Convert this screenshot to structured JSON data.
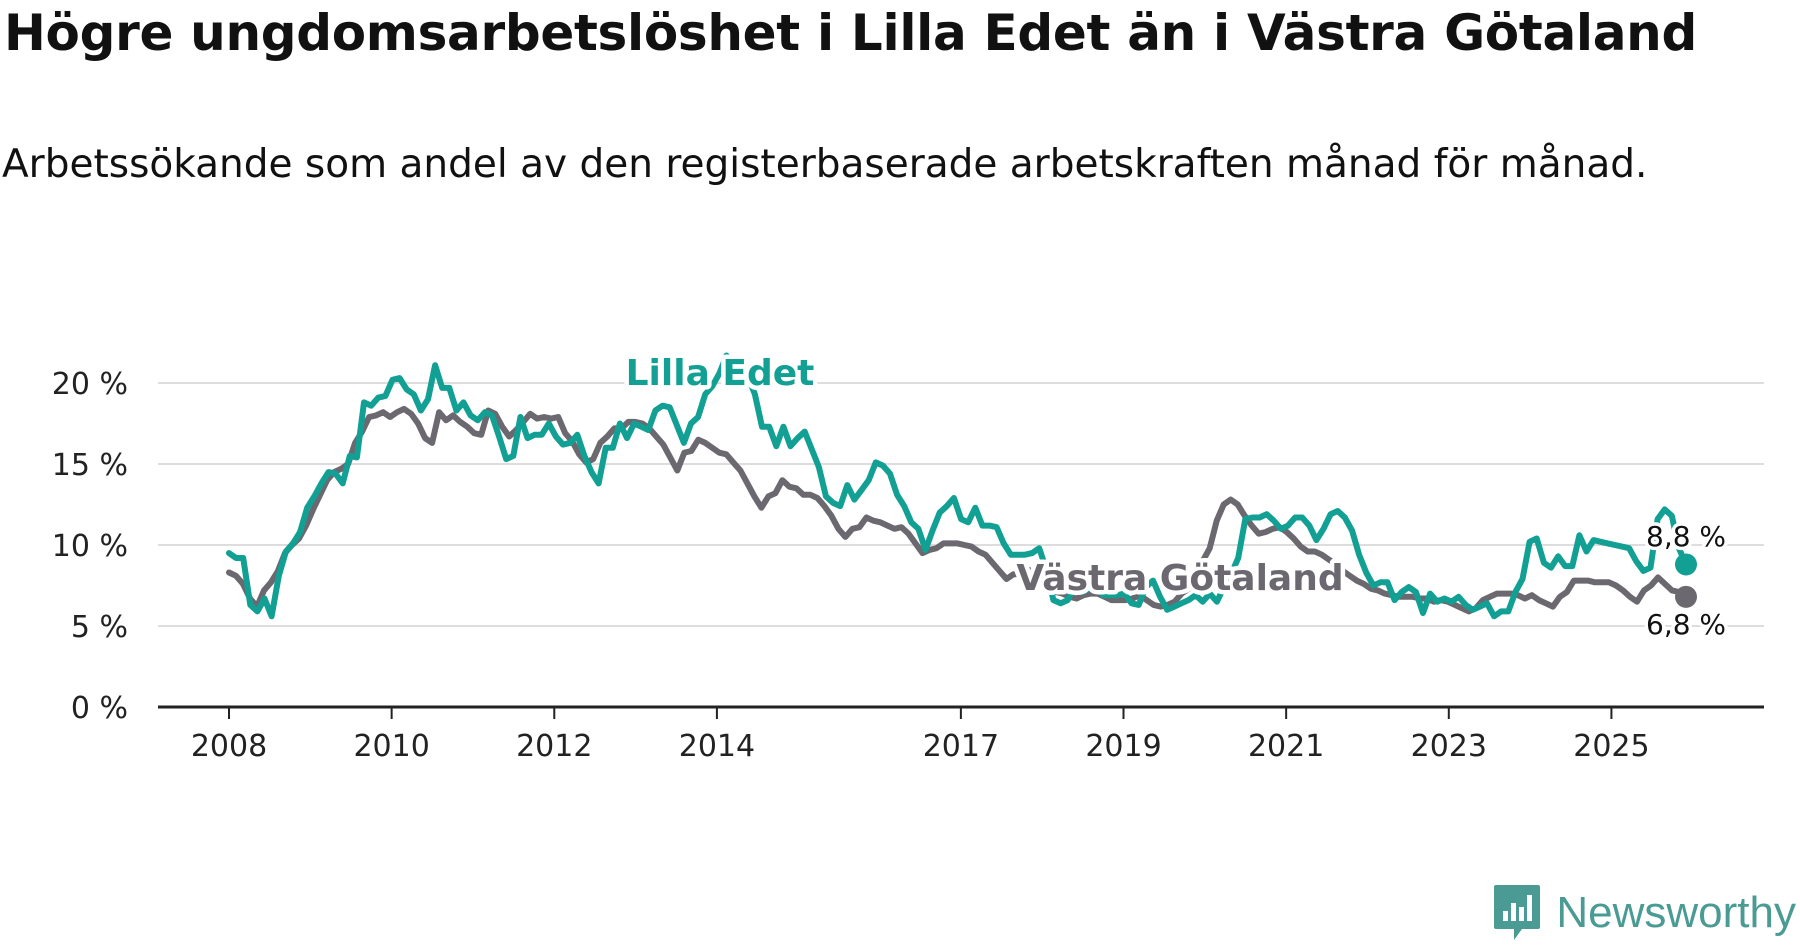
{
  "header": {
    "title": "Högre ungdomsarbetslöshet i Lilla Edet än i Västra Götaland",
    "subtitle": "Arbetssökande som andel av den registerbaserade arbetskraften månad för månad."
  },
  "brand": {
    "name": "Newsworthy",
    "icon": "newsworthy-logo-icon",
    "color": "#4a9b93"
  },
  "chart_data": {
    "type": "line",
    "x_tick_labels": [
      "2008",
      "2010",
      "2012",
      "2014",
      "2017",
      "2019",
      "2021",
      "2023",
      "2025"
    ],
    "x_tick_positions": [
      2008.0,
      2010.0,
      2012.0,
      2014.0,
      2017.0,
      2019.0,
      2021.0,
      2023.0,
      2025.0
    ],
    "xlim": [
      2008.0,
      2025.917
    ],
    "ylim": [
      0,
      20
    ],
    "y_ticks": [
      0,
      5,
      10,
      15,
      20
    ],
    "y_tick_labels": [
      "0 %",
      "5 %",
      "10 %",
      "15 %",
      "20 %"
    ],
    "grid": true,
    "series": [
      {
        "name": "Lilla Edet",
        "color": "#12a094",
        "end_label": "8,8 %",
        "values": [
          9.5,
          9.2,
          9.2,
          6.3,
          5.9,
          6.7,
          5.6,
          8.1,
          9.6,
          10.1,
          10.8,
          12.3,
          13.0,
          13.8,
          14.5,
          14.4,
          13.8,
          15.5,
          15.4,
          18.8,
          18.6,
          19.1,
          19.2,
          20.2,
          20.3,
          19.6,
          19.3,
          18.3,
          19.0,
          21.1,
          19.7,
          19.7,
          18.3,
          18.8,
          18.0,
          17.7,
          18.2,
          18.0,
          16.7,
          15.3,
          15.5,
          17.9,
          16.6,
          16.8,
          16.8,
          17.5,
          16.7,
          16.2,
          16.3,
          16.8,
          15.5,
          14.5,
          13.8,
          16.0,
          16.0,
          17.5,
          16.6,
          17.5,
          17.3,
          17.1,
          18.3,
          18.6,
          18.5,
          17.4,
          16.3,
          17.5,
          17.9,
          19.3,
          19.8,
          20.6,
          21.7,
          20.4,
          20.7,
          20.4,
          19.3,
          17.3,
          17.3,
          16.1,
          17.3,
          16.1,
          16.6,
          17.0,
          15.9,
          14.8,
          13.0,
          12.6,
          12.4,
          13.7,
          12.8,
          13.4,
          14.0,
          15.1,
          14.9,
          14.4,
          13.1,
          12.4,
          11.4,
          11.0,
          9.7,
          10.9,
          12.0,
          12.4,
          12.9,
          11.6,
          11.4,
          12.3,
          11.2,
          11.2,
          11.1,
          10.1,
          9.4,
          9.4,
          9.4,
          9.5,
          9.8,
          8.5,
          6.6,
          6.4,
          6.6,
          7.5,
          7.1,
          7.3,
          7.6,
          6.9,
          6.9,
          6.9,
          7.0,
          6.4,
          6.3,
          7.4,
          7.8,
          6.8,
          6.0,
          6.2,
          6.4,
          6.6,
          6.9,
          6.5,
          7.0,
          6.5,
          7.4,
          8.2,
          9.2,
          11.6,
          11.7,
          11.7,
          11.9,
          11.5,
          11.0,
          11.2,
          11.7,
          11.7,
          11.2,
          10.3,
          11.0,
          11.9,
          12.1,
          11.7,
          10.9,
          9.4,
          8.3,
          7.5,
          7.7,
          7.7,
          6.6,
          7.1,
          7.4,
          7.1,
          5.8,
          7.0,
          6.5,
          6.7,
          6.5,
          6.8,
          6.3,
          6.0,
          6.2,
          6.4,
          5.6,
          5.9,
          5.9,
          7.1,
          7.9,
          10.2,
          10.4,
          8.9,
          8.6,
          9.3,
          8.7,
          8.7,
          10.6,
          9.6,
          10.3,
          10.2,
          10.1,
          10.0,
          9.9,
          9.8,
          9.0,
          8.4,
          8.6,
          11.6,
          12.2,
          11.8,
          9.8,
          8.8
        ]
      },
      {
        "name": "Västra Götaland",
        "color": "#6b6870",
        "end_label": "6,8 %",
        "values": [
          8.3,
          8.1,
          7.6,
          6.7,
          6.2,
          7.2,
          7.7,
          8.4,
          9.5,
          10.0,
          10.4,
          11.2,
          12.2,
          13.1,
          14.0,
          14.5,
          14.7,
          15.0,
          16.3,
          17.0,
          17.9,
          18.0,
          18.2,
          17.9,
          18.2,
          18.4,
          18.1,
          17.5,
          16.6,
          16.3,
          18.2,
          17.7,
          18.0,
          17.6,
          17.3,
          16.9,
          16.8,
          18.3,
          18.1,
          17.3,
          16.7,
          17.1,
          17.6,
          18.1,
          17.8,
          17.9,
          17.8,
          17.9,
          16.9,
          16.4,
          15.6,
          15.1,
          15.3,
          16.3,
          16.7,
          17.2,
          17.2,
          17.6,
          17.6,
          17.5,
          17.2,
          16.7,
          16.2,
          15.4,
          14.6,
          15.7,
          15.8,
          16.5,
          16.3,
          16.0,
          15.7,
          15.6,
          15.1,
          14.6,
          13.8,
          13.0,
          12.3,
          13.0,
          13.2,
          14.0,
          13.6,
          13.5,
          13.1,
          13.1,
          12.9,
          12.4,
          11.8,
          11.0,
          10.5,
          11.0,
          11.1,
          11.7,
          11.5,
          11.4,
          11.2,
          11.0,
          11.1,
          10.7,
          10.1,
          9.5,
          9.7,
          9.8,
          10.1,
          10.1,
          10.1,
          10.0,
          9.9,
          9.6,
          9.4,
          8.9,
          8.4,
          7.9,
          8.2,
          8.2,
          8.5,
          8.3,
          7.9,
          7.4,
          7.1,
          7.0,
          6.8,
          6.7,
          6.9,
          7.0,
          7.0,
          6.8,
          6.6,
          6.6,
          6.6,
          6.7,
          6.9,
          6.6,
          6.3,
          6.2,
          6.3,
          6.5,
          7.0,
          7.3,
          8.0,
          9.0,
          9.8,
          11.5,
          12.5,
          12.8,
          12.5,
          11.8,
          11.2,
          10.7,
          10.8,
          11.0,
          11.1,
          10.8,
          10.4,
          9.9,
          9.6,
          9.6,
          9.4,
          9.1,
          8.8,
          8.4,
          8.1,
          7.8,
          7.6,
          7.3,
          7.2,
          7.0,
          6.9,
          6.8,
          6.8,
          6.8,
          6.7,
          6.7,
          6.5,
          6.6,
          6.5,
          6.3,
          6.1,
          5.9,
          6.1,
          6.6,
          6.8,
          7.0,
          7.0,
          7.0,
          6.9,
          6.7,
          6.9,
          6.6,
          6.4,
          6.2,
          6.8,
          7.1,
          7.8,
          7.8,
          7.8,
          7.7,
          7.7,
          7.7,
          7.5,
          7.2,
          6.8,
          6.5,
          7.2,
          7.5,
          8.0,
          7.6,
          7.2,
          7.1,
          6.8
        ]
      }
    ]
  }
}
